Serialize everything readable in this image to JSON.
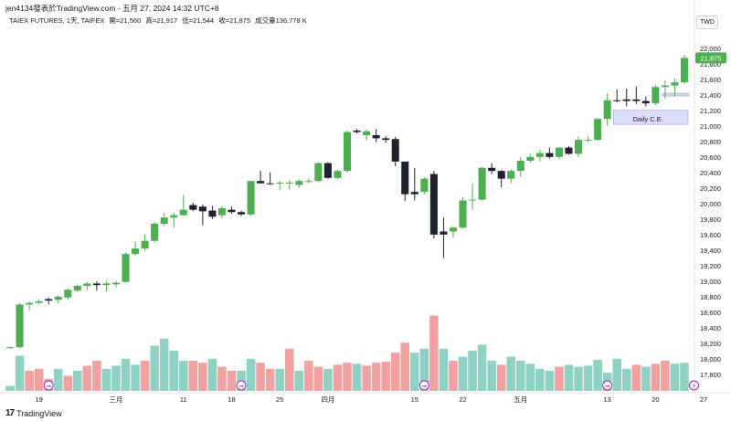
{
  "header": {
    "topline": "jen4134發表於TradingView.com - 五月 27, 2024 14:32 UTC+8",
    "symbol": "TAIEX FUTURES, 1天, TAIFEX",
    "open": "開=21,560",
    "high": "高=21,917",
    "low": "低=21,544",
    "close": "收=21,875",
    "volume": "成交量136.778 K",
    "currency": "TWD"
  },
  "footer": {
    "logo": "17",
    "brand": "TradingView"
  },
  "colors": {
    "up": "#4caf50",
    "down": "#1e222d",
    "neutral": "#d7d9db",
    "vol_up": "#8fd1c4",
    "vol_down": "#f2a1a1",
    "price_label": "#4caf50",
    "zone": "#c5c6f0",
    "zone_border": "#8b8fe0"
  },
  "chart_data": {
    "type": "candlestick",
    "ylim": [
      17600,
      22150
    ],
    "y_ticks": [
      "22,000",
      "21,800",
      "21,600",
      "21,400",
      "21,200",
      "21,000",
      "20,800",
      "20,600",
      "20,400",
      "20,200",
      "20,000",
      "19,800",
      "19,600",
      "19,400",
      "19,200",
      "19,000",
      "18,800",
      "18,600",
      "18,400",
      "18,200",
      "18,000",
      "17,800"
    ],
    "y_tick_values": [
      22000,
      21800,
      21600,
      21400,
      21200,
      21000,
      20800,
      20600,
      20400,
      20200,
      20000,
      19800,
      19600,
      19400,
      19200,
      19000,
      18800,
      18600,
      18400,
      18200,
      18000,
      17800
    ],
    "x_ticks": [
      {
        "label": "19",
        "index": 3
      },
      {
        "label": "三月",
        "index": 11
      },
      {
        "label": "11",
        "index": 18
      },
      {
        "label": "18",
        "index": 23
      },
      {
        "label": "25",
        "index": 28
      },
      {
        "label": "四月",
        "index": 33
      },
      {
        "label": "15",
        "index": 42
      },
      {
        "label": "22",
        "index": 47
      },
      {
        "label": "五月",
        "index": 53
      },
      {
        "label": "13",
        "index": 62
      },
      {
        "label": "20",
        "index": 67
      },
      {
        "label": "27",
        "index": 72
      }
    ],
    "last_price_label": "21,875",
    "last_price": 21875,
    "annotation": {
      "text": "Daily C.E.",
      "x_from": 63,
      "x_to": 70,
      "y_low": 21020,
      "y_high": 21200
    },
    "zone2": {
      "x_from": 68,
      "x_to": 70,
      "y_low": 21390,
      "y_high": 21420
    },
    "ohlc": [
      [
        18150,
        18160,
        18130,
        18140,
        "up"
      ],
      [
        18150,
        18720,
        18140,
        18700,
        "up"
      ],
      [
        18700,
        18740,
        18620,
        18720,
        "up"
      ],
      [
        18720,
        18770,
        18700,
        18740,
        "up"
      ],
      [
        18750,
        18790,
        18700,
        18770,
        "down"
      ],
      [
        18760,
        18820,
        18720,
        18800,
        "up"
      ],
      [
        18790,
        18910,
        18760,
        18890,
        "up"
      ],
      [
        18880,
        18960,
        18860,
        18940,
        "up"
      ],
      [
        18940,
        18990,
        18890,
        18970,
        "up"
      ],
      [
        18970,
        19000,
        18880,
        18950,
        "down"
      ],
      [
        18950,
        19000,
        18870,
        18970,
        "up"
      ],
      [
        18960,
        19000,
        18920,
        18980,
        "up"
      ],
      [
        18990,
        19370,
        18980,
        19350,
        "up"
      ],
      [
        19350,
        19510,
        19330,
        19420,
        "up"
      ],
      [
        19420,
        19600,
        19390,
        19520,
        "up"
      ],
      [
        19520,
        19760,
        19500,
        19740,
        "up"
      ],
      [
        19740,
        19880,
        19710,
        19820,
        "up"
      ],
      [
        19820,
        19880,
        19690,
        19850,
        "up"
      ],
      [
        19850,
        20110,
        19840,
        19920,
        "up"
      ],
      [
        19920,
        20010,
        19900,
        19980,
        "down"
      ],
      [
        19960,
        19990,
        19720,
        19900,
        "down"
      ],
      [
        19910,
        19970,
        19800,
        19830,
        "down"
      ],
      [
        19850,
        19970,
        19810,
        19940,
        "up"
      ],
      [
        19920,
        19960,
        19870,
        19890,
        "down"
      ],
      [
        19890,
        19910,
        19840,
        19860,
        "down"
      ],
      [
        19860,
        20290,
        19840,
        20290,
        "up"
      ],
      [
        20290,
        20420,
        20260,
        20260,
        "down"
      ],
      [
        20260,
        20400,
        20240,
        20250,
        "down"
      ],
      [
        20260,
        20290,
        20170,
        20270,
        "up"
      ],
      [
        20270,
        20300,
        20180,
        20260,
        "up"
      ],
      [
        20240,
        20310,
        20200,
        20290,
        "up"
      ],
      [
        20280,
        20320,
        20260,
        20290,
        "up"
      ],
      [
        20290,
        20530,
        20280,
        20520,
        "up"
      ],
      [
        20520,
        20530,
        20320,
        20330,
        "down"
      ],
      [
        20330,
        20440,
        20310,
        20420,
        "up"
      ],
      [
        20420,
        20940,
        20400,
        20920,
        "up"
      ],
      [
        20920,
        20960,
        20900,
        20940,
        "down"
      ],
      [
        20930,
        20950,
        20810,
        20880,
        "up"
      ],
      [
        20880,
        20960,
        20790,
        20840,
        "down"
      ],
      [
        20840,
        20870,
        20780,
        20820,
        "down"
      ],
      [
        20830,
        20860,
        20480,
        20540,
        "down"
      ],
      [
        20540,
        20540,
        20030,
        20120,
        "down"
      ],
      [
        20120,
        20460,
        20040,
        20150,
        "down"
      ],
      [
        20150,
        20340,
        20120,
        20320,
        "up"
      ],
      [
        20380,
        20420,
        19550,
        19600,
        "down"
      ],
      [
        19600,
        19820,
        19300,
        19640,
        "down"
      ],
      [
        19640,
        19710,
        19560,
        19690,
        "up"
      ],
      [
        19690,
        20080,
        19680,
        20040,
        "up"
      ],
      [
        20040,
        20260,
        19920,
        20050,
        "up"
      ],
      [
        20050,
        20470,
        20040,
        20460,
        "up"
      ],
      [
        20460,
        20520,
        20380,
        20420,
        "down"
      ],
      [
        20420,
        20430,
        20210,
        20320,
        "down"
      ],
      [
        20320,
        20440,
        20260,
        20420,
        "up"
      ],
      [
        20420,
        20600,
        20340,
        20550,
        "up"
      ],
      [
        20550,
        20640,
        20530,
        20600,
        "up"
      ],
      [
        20600,
        20690,
        20540,
        20650,
        "up"
      ],
      [
        20650,
        20720,
        20580,
        20600,
        "down"
      ],
      [
        20600,
        20730,
        20570,
        20720,
        "up"
      ],
      [
        20720,
        20740,
        20630,
        20640,
        "down"
      ],
      [
        20640,
        20860,
        20600,
        20820,
        "up"
      ],
      [
        20820,
        20870,
        20790,
        20820,
        "up"
      ],
      [
        20820,
        21100,
        20810,
        21090,
        "up"
      ],
      [
        21090,
        21420,
        21000,
        21330,
        "up"
      ],
      [
        21330,
        21470,
        21300,
        21320,
        "down"
      ],
      [
        21320,
        21480,
        21250,
        21340,
        "down"
      ],
      [
        21340,
        21510,
        21280,
        21320,
        "down"
      ],
      [
        21320,
        21380,
        21250,
        21290,
        "down"
      ],
      [
        21290,
        21530,
        21270,
        21500,
        "up"
      ],
      [
        21500,
        21580,
        21350,
        21520,
        "up"
      ],
      [
        21520,
        21610,
        21380,
        21560,
        "up"
      ],
      [
        21560,
        21917,
        21544,
        21875,
        "up"
      ]
    ],
    "volume": [
      [
        0.05,
        "up"
      ],
      [
        0.35,
        "up"
      ],
      [
        0.2,
        "down"
      ],
      [
        0.22,
        "down"
      ],
      [
        0.12,
        "down"
      ],
      [
        0.22,
        "up"
      ],
      [
        0.15,
        "down"
      ],
      [
        0.2,
        "up"
      ],
      [
        0.25,
        "down"
      ],
      [
        0.3,
        "down"
      ],
      [
        0.22,
        "up"
      ],
      [
        0.25,
        "up"
      ],
      [
        0.32,
        "up"
      ],
      [
        0.26,
        "up"
      ],
      [
        0.3,
        "down"
      ],
      [
        0.45,
        "up"
      ],
      [
        0.52,
        "up"
      ],
      [
        0.4,
        "up"
      ],
      [
        0.3,
        "up"
      ],
      [
        0.3,
        "down"
      ],
      [
        0.28,
        "down"
      ],
      [
        0.32,
        "up"
      ],
      [
        0.24,
        "down"
      ],
      [
        0.2,
        "down"
      ],
      [
        0.2,
        "up"
      ],
      [
        0.32,
        "up"
      ],
      [
        0.28,
        "down"
      ],
      [
        0.22,
        "down"
      ],
      [
        0.22,
        "up"
      ],
      [
        0.42,
        "down"
      ],
      [
        0.2,
        "up"
      ],
      [
        0.3,
        "down"
      ],
      [
        0.24,
        "down"
      ],
      [
        0.22,
        "up"
      ],
      [
        0.26,
        "down"
      ],
      [
        0.28,
        "down"
      ],
      [
        0.27,
        "up"
      ],
      [
        0.25,
        "down"
      ],
      [
        0.28,
        "down"
      ],
      [
        0.29,
        "down"
      ],
      [
        0.38,
        "down"
      ],
      [
        0.48,
        "down"
      ],
      [
        0.38,
        "up"
      ],
      [
        0.42,
        "up"
      ],
      [
        0.75,
        "down"
      ],
      [
        0.42,
        "up"
      ],
      [
        0.3,
        "down"
      ],
      [
        0.34,
        "up"
      ],
      [
        0.4,
        "up"
      ],
      [
        0.46,
        "up"
      ],
      [
        0.3,
        "up"
      ],
      [
        0.26,
        "down"
      ],
      [
        0.34,
        "up"
      ],
      [
        0.3,
        "up"
      ],
      [
        0.27,
        "up"
      ],
      [
        0.22,
        "up"
      ],
      [
        0.2,
        "up"
      ],
      [
        0.24,
        "down"
      ],
      [
        0.26,
        "up"
      ],
      [
        0.24,
        "up"
      ],
      [
        0.25,
        "up"
      ],
      [
        0.31,
        "up"
      ],
      [
        0.18,
        "up"
      ],
      [
        0.32,
        "up"
      ],
      [
        0.22,
        "up"
      ],
      [
        0.26,
        "down"
      ],
      [
        0.24,
        "up"
      ],
      [
        0.27,
        "down"
      ],
      [
        0.3,
        "down"
      ],
      [
        0.27,
        "up"
      ],
      [
        0.28,
        "up"
      ]
    ],
    "event_markers": [
      {
        "index": 4,
        "glyph": "⇒",
        "color": "#9c27b0"
      },
      {
        "index": 24,
        "glyph": "⇒",
        "color": "#9c27b0"
      },
      {
        "index": 43,
        "glyph": "⇒",
        "color": "#9c27b0"
      },
      {
        "index": 62,
        "glyph": "⇒",
        "color": "#9c27b0"
      },
      {
        "index": 71,
        "glyph": "⚡",
        "color": "#9c27b0"
      }
    ]
  }
}
